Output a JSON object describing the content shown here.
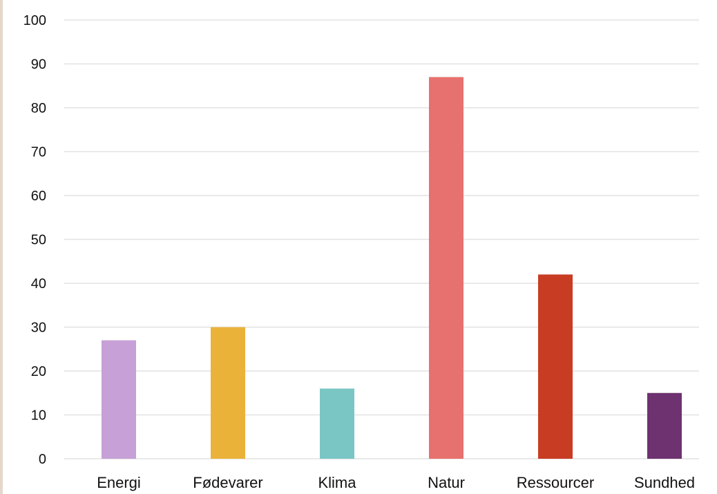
{
  "chart_data": {
    "type": "bar",
    "categories": [
      "Energi",
      "Fødevarer",
      "Klima",
      "Natur",
      "Ressourcer",
      "Sundhed"
    ],
    "values": [
      27,
      30,
      16,
      87,
      42,
      15
    ],
    "colors": [
      "#c6a0d6",
      "#ebb23a",
      "#79c6c5",
      "#e6716e",
      "#c83c24",
      "#6e3270"
    ],
    "title": "",
    "xlabel": "",
    "ylabel": "",
    "ylim": [
      0,
      100
    ],
    "yticks": [
      0,
      10,
      20,
      30,
      40,
      50,
      60,
      70,
      80,
      90,
      100
    ],
    "grid": true,
    "gridColor": "#e2e2e2",
    "legend": "none"
  }
}
